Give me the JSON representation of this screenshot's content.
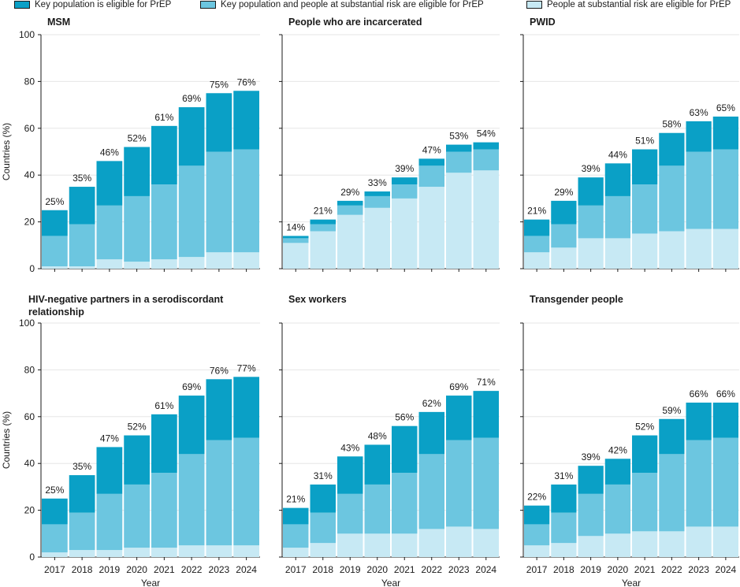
{
  "legend": {
    "key": "Key population is eligible for PrEP",
    "both": "Key population and people at substantial risk are eligible for PrEP",
    "risk": "People at substantial risk are eligible for PrEP"
  },
  "colors": {
    "key": "#0aa0c6",
    "both": "#6cc6e0",
    "risk": "#c7e9f4",
    "axis": "#1a1a1a",
    "grid": "#e6e6e6"
  },
  "chart_data": [
    {
      "type": "bar",
      "title": "MSM",
      "categories": [
        "2017",
        "2018",
        "2019",
        "2020",
        "2021",
        "2022",
        "2023",
        "2024"
      ],
      "series": [
        {
          "name": "People at substantial risk are eligible for PrEP",
          "values": [
            1,
            1,
            4,
            3,
            4,
            5,
            7,
            7
          ]
        },
        {
          "name": "Key population and people at substantial risk are eligible for PrEP",
          "values": [
            13,
            18,
            23,
            28,
            32,
            39,
            43,
            44
          ]
        },
        {
          "name": "Key population is eligible for PrEP",
          "values": [
            11,
            16,
            19,
            21,
            25,
            25,
            25,
            25
          ]
        }
      ],
      "totals": [
        "25%",
        "35%",
        "46%",
        "52%",
        "61%",
        "69%",
        "75%",
        "76%"
      ],
      "ylabel": "Countries (%)",
      "xlabel": "",
      "ylim": [
        0,
        100
      ],
      "yticks": [
        "0",
        "20",
        "40",
        "60",
        "80",
        "100"
      ]
    },
    {
      "type": "bar",
      "title": "People who are incarcerated",
      "categories": [
        "2017",
        "2018",
        "2019",
        "2020",
        "2021",
        "2022",
        "2023",
        "2024"
      ],
      "series": [
        {
          "name": "People at substantial risk are eligible for PrEP",
          "values": [
            11,
            16,
            23,
            26,
            30,
            35,
            41,
            42
          ]
        },
        {
          "name": "Key population and people at substantial risk are eligible for PrEP",
          "values": [
            2,
            3,
            4,
            5,
            6,
            9,
            9,
            9
          ]
        },
        {
          "name": "Key population is eligible for PrEP",
          "values": [
            1,
            2,
            2,
            2,
            3,
            3,
            3,
            3
          ]
        }
      ],
      "totals": [
        "14%",
        "21%",
        "29%",
        "33%",
        "39%",
        "47%",
        "53%",
        "54%"
      ],
      "ylabel": "",
      "xlabel": "",
      "ylim": [
        0,
        100
      ]
    },
    {
      "type": "bar",
      "title": "PWID",
      "categories": [
        "2017",
        "2018",
        "2019",
        "2020",
        "2021",
        "2022",
        "2023",
        "2024"
      ],
      "series": [
        {
          "name": "People at substantial risk are eligible for PrEP",
          "values": [
            7,
            9,
            13,
            13,
            15,
            16,
            17,
            17
          ]
        },
        {
          "name": "Key population and people at substantial risk are eligible for PrEP",
          "values": [
            7,
            10,
            14,
            18,
            21,
            28,
            33,
            34
          ]
        },
        {
          "name": "Key population is eligible for PrEP",
          "values": [
            7,
            10,
            12,
            14,
            15,
            14,
            13,
            14
          ]
        }
      ],
      "totals": [
        "21%",
        "29%",
        "39%",
        "44%",
        "51%",
        "58%",
        "63%",
        "65%"
      ],
      "ylabel": "",
      "xlabel": "",
      "ylim": [
        0,
        100
      ]
    },
    {
      "type": "bar",
      "title": "HIV-negative partners in a serodiscordant relationship",
      "categories": [
        "2017",
        "2018",
        "2019",
        "2020",
        "2021",
        "2022",
        "2023",
        "2024"
      ],
      "series": [
        {
          "name": "People at substantial risk are eligible for PrEP",
          "values": [
            2,
            3,
            3,
            4,
            4,
            5,
            5,
            5
          ]
        },
        {
          "name": "Key population and people at substantial risk are eligible for PrEP",
          "values": [
            12,
            16,
            24,
            27,
            32,
            39,
            45,
            46
          ]
        },
        {
          "name": "Key population is eligible for PrEP",
          "values": [
            11,
            16,
            20,
            21,
            25,
            25,
            26,
            26
          ]
        }
      ],
      "totals": [
        "25%",
        "35%",
        "47%",
        "52%",
        "61%",
        "69%",
        "76%",
        "77%"
      ],
      "ylabel": "Countries (%)",
      "xlabel": "Year",
      "ylim": [
        0,
        100
      ],
      "yticks": [
        "0",
        "20",
        "40",
        "60",
        "80",
        "100"
      ]
    },
    {
      "type": "bar",
      "title": "Sex workers",
      "categories": [
        "2017",
        "2018",
        "2019",
        "2020",
        "2021",
        "2022",
        "2023",
        "2024"
      ],
      "series": [
        {
          "name": "People at substantial risk are eligible for PrEP",
          "values": [
            4,
            6,
            10,
            10,
            10,
            12,
            13,
            12
          ]
        },
        {
          "name": "Key population and people at substantial risk are eligible for PrEP",
          "values": [
            10,
            13,
            17,
            21,
            26,
            32,
            37,
            39
          ]
        },
        {
          "name": "Key population is eligible for PrEP",
          "values": [
            7,
            12,
            16,
            17,
            20,
            18,
            19,
            20
          ]
        }
      ],
      "totals": [
        "21%",
        "31%",
        "43%",
        "48%",
        "56%",
        "62%",
        "69%",
        "71%"
      ],
      "ylabel": "",
      "xlabel": "Year",
      "ylim": [
        0,
        100
      ]
    },
    {
      "type": "bar",
      "title": "Transgender people",
      "categories": [
        "2017",
        "2018",
        "2019",
        "2020",
        "2021",
        "2022",
        "2023",
        "2024"
      ],
      "series": [
        {
          "name": "People at substantial risk are eligible for PrEP",
          "values": [
            5,
            6,
            9,
            10,
            11,
            11,
            13,
            13
          ]
        },
        {
          "name": "Key population and people at substantial risk are eligible for PrEP",
          "values": [
            9,
            13,
            18,
            21,
            25,
            33,
            37,
            38
          ]
        },
        {
          "name": "Key population is eligible for PrEP",
          "values": [
            8,
            12,
            12,
            11,
            16,
            15,
            16,
            15
          ]
        }
      ],
      "totals": [
        "22%",
        "31%",
        "39%",
        "42%",
        "52%",
        "59%",
        "66%",
        "66%"
      ],
      "ylabel": "",
      "xlabel": "Year",
      "ylim": [
        0,
        100
      ]
    }
  ]
}
